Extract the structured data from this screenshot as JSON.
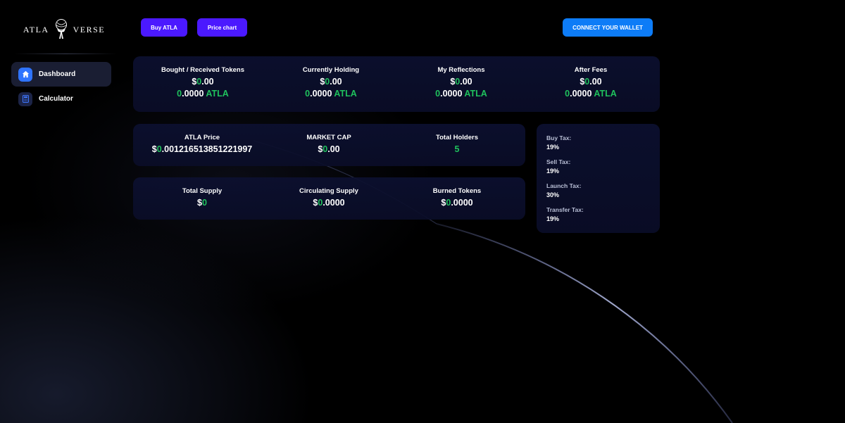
{
  "logo": {
    "left": "ATLA",
    "right": "VERSE"
  },
  "sidebar": {
    "items": [
      {
        "label": "Dashboard",
        "icon": "home-icon",
        "active": true
      },
      {
        "label": "Calculator",
        "icon": "calculator-icon",
        "active": false
      }
    ]
  },
  "header": {
    "buy_label": "Buy ATLA",
    "chart_label": "Price chart",
    "wallet_label": "CONNECT YOUR WALLET"
  },
  "holdings": [
    {
      "label": "Bought / Received Tokens",
      "usd_prefix": "$",
      "usd_int": "0",
      "usd_dec": ".00",
      "tok_int": "0",
      "tok_dec": ".0000",
      "tok_unit": " ATLA"
    },
    {
      "label": "Currently Holding",
      "usd_prefix": "$",
      "usd_int": "0",
      "usd_dec": ".00",
      "tok_int": "0",
      "tok_dec": ".0000",
      "tok_unit": " ATLA"
    },
    {
      "label": "My Reflections",
      "usd_prefix": "$",
      "usd_int": "0",
      "usd_dec": ".00",
      "tok_int": "0",
      "tok_dec": ".0000",
      "tok_unit": " ATLA"
    },
    {
      "label": "After Fees",
      "usd_prefix": "$",
      "usd_int": "0",
      "usd_dec": ".00",
      "tok_int": "0",
      "tok_dec": ".0000",
      "tok_unit": " ATLA"
    }
  ],
  "market": {
    "price_label": "ATLA Price",
    "price_prefix": "$",
    "price_int": "0",
    "price_dec": ".001216513851221997",
    "cap_label": "MARKET CAP",
    "cap_prefix": "$",
    "cap_int": "0",
    "cap_dec": ".00",
    "holders_label": "Total Holders",
    "holders_value": "5"
  },
  "supply": {
    "total_label": "Total Supply",
    "total_prefix": "$",
    "total_int": "0",
    "circ_label": "Circulating Supply",
    "circ_prefix": "$",
    "circ_int": "0",
    "circ_dec": ".0000",
    "burned_label": "Burned Tokens",
    "burned_prefix": "$",
    "burned_int": "0",
    "burned_dec": ".0000"
  },
  "taxes": [
    {
      "label": "Buy Tax:",
      "value": "19%"
    },
    {
      "label": "Sell Tax:",
      "value": "19%"
    },
    {
      "label": "Launch Tax:",
      "value": "30%"
    },
    {
      "label": "Transfer Tax:",
      "value": "19%"
    }
  ],
  "colors": {
    "accent_green": "#1fc25d",
    "button_purple": "#4b19ff",
    "button_blue": "#0d7cf7",
    "card_bg": "#0c1030"
  }
}
